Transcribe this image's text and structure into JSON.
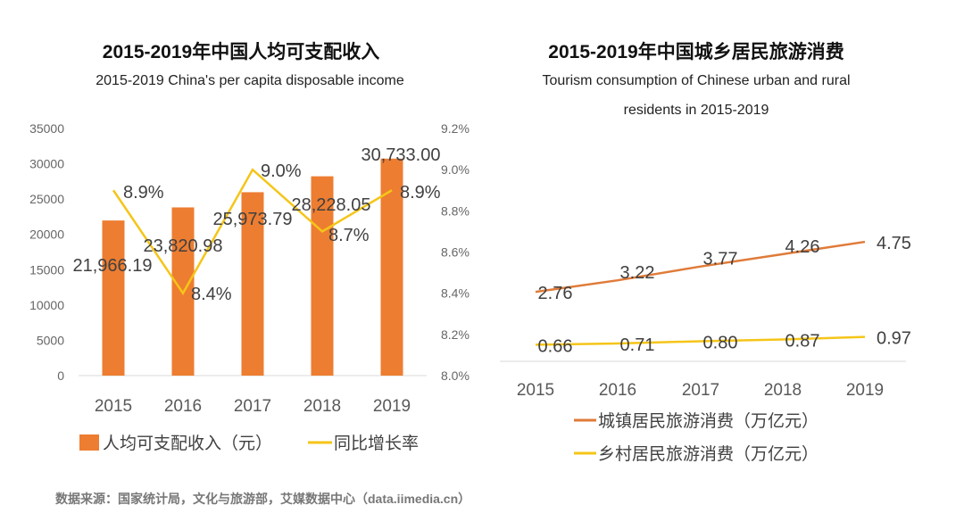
{
  "chart_data": [
    {
      "type": "bar+line",
      "title": "2015-2019年中国人均可支配收入",
      "subtitle": "2015-2019 China's per capita disposable income",
      "categories": [
        "2015",
        "2016",
        "2017",
        "2018",
        "2019"
      ],
      "series": [
        {
          "name": "人均可支配收入（元）",
          "type": "bar",
          "axis": "left",
          "color": "#ED7D31",
          "values": [
            21966.19,
            23820.98,
            25973.79,
            28228.05,
            30733.0
          ],
          "labels": [
            "21,966.19",
            "23,820.98",
            "25,973.79",
            "28,228.05",
            "30,733.00"
          ]
        },
        {
          "name": "同比增长率",
          "type": "line",
          "axis": "right",
          "color": "#F5C518",
          "values": [
            8.9,
            8.4,
            9.0,
            8.7,
            8.9
          ],
          "labels": [
            "8.9%",
            "8.4%",
            "9.0%",
            "8.7%",
            "8.9%"
          ]
        }
      ],
      "left_axis": {
        "ylim": [
          0,
          35000
        ],
        "ticks": [
          "0",
          "5000",
          "10000",
          "15000",
          "20000",
          "25000",
          "30000",
          "35000"
        ]
      },
      "right_axis": {
        "ylim": [
          8.0,
          9.2
        ],
        "ticks": [
          "8.0%",
          "8.2%",
          "8.4%",
          "8.6%",
          "8.8%",
          "9.0%",
          "9.2%"
        ]
      },
      "grid": false,
      "legend": "bottom"
    },
    {
      "type": "line",
      "title": "2015-2019年中国城乡居民旅游消费",
      "subtitle_lines": [
        "Tourism consumption of Chinese urban and rural",
        "residents in 2015-2019"
      ],
      "categories": [
        "2015",
        "2016",
        "2017",
        "2018",
        "2019"
      ],
      "series": [
        {
          "name": "城镇居民旅游消费（万亿元）",
          "color": "#E07B39",
          "values": [
            2.76,
            3.22,
            3.77,
            4.26,
            4.75
          ],
          "labels": [
            "2.76",
            "3.22",
            "3.77",
            "4.26",
            "4.75"
          ]
        },
        {
          "name": "乡村居民旅游消费（万亿元）",
          "color": "#F5C518",
          "values": [
            0.66,
            0.71,
            0.8,
            0.87,
            0.97
          ],
          "labels": [
            "0.66",
            "0.71",
            "0.80",
            "0.87",
            "0.97"
          ]
        }
      ],
      "grid": false,
      "legend": "bottom"
    }
  ],
  "source": "数据来源：国家统计局，文化与旅游部，艾媒数据中心（data.iimedia.cn）"
}
